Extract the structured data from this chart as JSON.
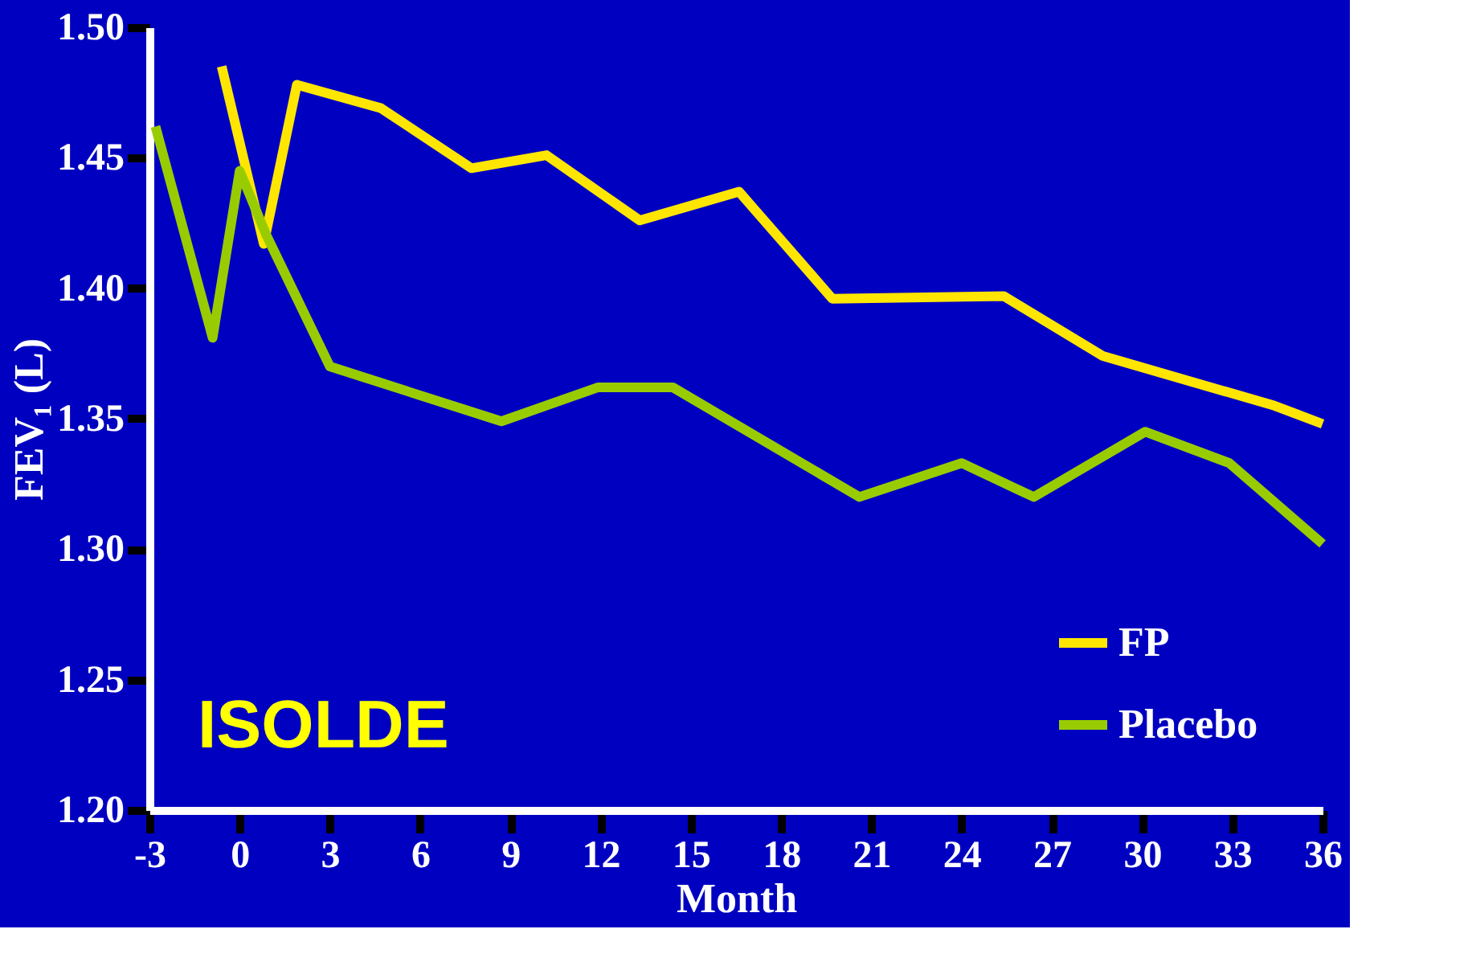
{
  "chart_data": {
    "type": "line",
    "xlabel": "Month",
    "ylabel": "FEV₁ (L)",
    "xlim": [
      -3,
      36
    ],
    "xticks": [
      -3,
      0,
      3,
      6,
      9,
      12,
      15,
      18,
      21,
      24,
      27,
      30,
      33,
      36
    ],
    "ylim": [
      1.2,
      1.5
    ],
    "yticks": [
      {
        "value": 1.2,
        "label": "1.20"
      },
      1.25,
      {
        "value": 1.3,
        "label": "1.30"
      },
      1.35,
      {
        "value": 1.4,
        "label": "1.40"
      },
      1.45,
      {
        "value": 1.5,
        "label": "1.50"
      }
    ],
    "series": [
      {
        "name": "FP",
        "color": "#ffe600",
        "x": [
          -0.6,
          0.8,
          1.9,
          4.7,
          7.7,
          10.2,
          13.3,
          16.6,
          19.7,
          25.4,
          28.7,
          34.4,
          36
        ],
        "values": [
          1.485,
          1.417,
          1.478,
          1.469,
          1.446,
          1.451,
          1.426,
          1.437,
          1.396,
          1.397,
          1.374,
          1.355,
          1.348
        ]
      },
      {
        "name": "Placebo",
        "color": "#99cc00",
        "x": [
          -2.8,
          -0.9,
          0,
          0.9,
          3,
          8.7,
          11.9,
          14.4,
          20.6,
          24,
          26.4,
          30.1,
          32.9,
          36
        ],
        "values": [
          1.462,
          1.381,
          1.445,
          1.42,
          1.37,
          1.349,
          1.362,
          1.362,
          1.32,
          1.333,
          1.32,
          1.345,
          1.333,
          1.302
        ]
      }
    ],
    "annotations": [
      "ISOLDE"
    ],
    "legend": "bottom right",
    "grid": false,
    "marker": "none",
    "line_style": "solid"
  }
}
